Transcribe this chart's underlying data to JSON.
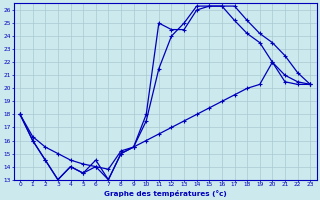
{
  "xlabel": "Graphe des températures (°c)",
  "xlim": [
    -0.5,
    23.5
  ],
  "ylim": [
    13,
    26.5
  ],
  "yticks": [
    13,
    14,
    15,
    16,
    17,
    18,
    19,
    20,
    21,
    22,
    23,
    24,
    25,
    26
  ],
  "xticks": [
    0,
    1,
    2,
    3,
    4,
    5,
    6,
    7,
    8,
    9,
    10,
    11,
    12,
    13,
    14,
    15,
    16,
    17,
    18,
    19,
    20,
    21,
    22,
    23
  ],
  "bg_color": "#cce9ee",
  "line_color": "#0000bb",
  "grid_color": "#aac8d0",
  "line1_x": [
    0,
    1,
    2,
    3,
    4,
    5,
    6,
    7,
    8,
    9,
    10,
    11,
    12,
    13,
    14,
    15,
    16,
    17,
    18,
    19,
    20,
    21,
    22,
    23
  ],
  "line1_y": [
    18,
    16,
    14.5,
    13,
    14,
    13.5,
    14.5,
    13,
    15,
    15.5,
    18.0,
    25.0,
    24.5,
    24.5,
    26.0,
    26.3,
    26.3,
    25.2,
    24.2,
    23.5,
    22.0,
    21.0,
    20.5,
    20.3
  ],
  "line2_x": [
    0,
    1,
    2,
    3,
    4,
    5,
    6,
    7,
    8,
    9,
    10,
    11,
    12,
    13,
    14,
    15,
    16,
    17,
    18,
    19,
    20,
    21,
    22,
    23
  ],
  "line2_y": [
    18,
    16,
    14.5,
    13,
    14,
    13.5,
    14,
    13,
    15,
    15.5,
    17.5,
    21.5,
    24.0,
    25.0,
    26.3,
    26.3,
    26.3,
    26.3,
    25.2,
    24.2,
    23.5,
    22.5,
    21.2,
    20.3
  ],
  "line3_x": [
    0,
    1,
    2,
    3,
    4,
    5,
    6,
    7,
    8,
    9,
    10,
    11,
    12,
    13,
    14,
    15,
    16,
    17,
    18,
    19,
    20,
    21,
    22,
    23
  ],
  "line3_y": [
    18,
    16.3,
    15.5,
    15.0,
    14.5,
    14.2,
    14.0,
    13.8,
    15.2,
    15.5,
    16.0,
    16.5,
    17.0,
    17.5,
    18.0,
    18.5,
    19.0,
    19.5,
    20.0,
    20.3,
    22.0,
    20.5,
    20.3,
    20.3
  ]
}
